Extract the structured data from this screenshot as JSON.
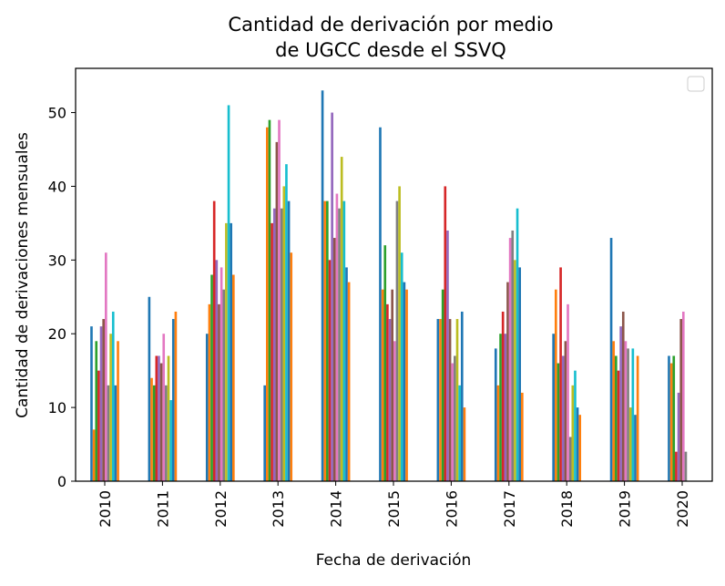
{
  "chart_data": {
    "type": "bar",
    "title_line1": "Cantidad de derivación por medio",
    "title_line2": "de UGCC desde el SSVQ",
    "xlabel": "Fecha de derivación",
    "ylabel": "Cantidad de derivaciones mensuales",
    "ylim": [
      0,
      56
    ],
    "yticks": [
      0,
      10,
      20,
      30,
      40,
      50
    ],
    "grid": false,
    "legend": "top-right (empty)",
    "categories": [
      "2010",
      "2011",
      "2012",
      "2013",
      "2014",
      "2015",
      "2016",
      "2017",
      "2018",
      "2019",
      "2020"
    ],
    "colors": [
      "#1f77b4",
      "#ff7f0e",
      "#2ca02c",
      "#d62728",
      "#9467bd",
      "#8c564b",
      "#e377c2",
      "#7f7f7f",
      "#bcbd22",
      "#17becf",
      "#1f77b4",
      "#ff7f0e"
    ],
    "series": [
      {
        "values": [
          21,
          25,
          20,
          13,
          53,
          48,
          22,
          18,
          20,
          33,
          17
        ]
      },
      {
        "values": [
          7,
          14,
          24,
          48,
          38,
          26,
          22,
          13,
          26,
          19,
          16
        ]
      },
      {
        "values": [
          19,
          13,
          28,
          49,
          38,
          32,
          26,
          20,
          16,
          17,
          17
        ]
      },
      {
        "values": [
          15,
          17,
          38,
          35,
          30,
          24,
          40,
          23,
          29,
          15,
          4
        ]
      },
      {
        "values": [
          21,
          17,
          30,
          37,
          50,
          22,
          34,
          20,
          17,
          21,
          12
        ]
      },
      {
        "values": [
          22,
          16,
          24,
          46,
          33,
          26,
          22,
          27,
          19,
          23,
          22
        ]
      },
      {
        "values": [
          31,
          20,
          29,
          49,
          39,
          19,
          16,
          33,
          24,
          19,
          23
        ]
      },
      {
        "values": [
          13,
          13,
          26,
          37,
          37,
          38,
          17,
          34,
          6,
          18,
          4
        ]
      },
      {
        "values": [
          20,
          17,
          35,
          40,
          44,
          40,
          22,
          30,
          13,
          10,
          0
        ]
      },
      {
        "values": [
          23,
          11,
          51,
          43,
          38,
          31,
          13,
          37,
          15,
          18,
          0
        ]
      },
      {
        "values": [
          13,
          22,
          35,
          38,
          29,
          27,
          23,
          29,
          10,
          9,
          0
        ]
      },
      {
        "values": [
          19,
          23,
          28,
          31,
          27,
          26,
          10,
          12,
          9,
          17,
          0
        ]
      }
    ]
  }
}
